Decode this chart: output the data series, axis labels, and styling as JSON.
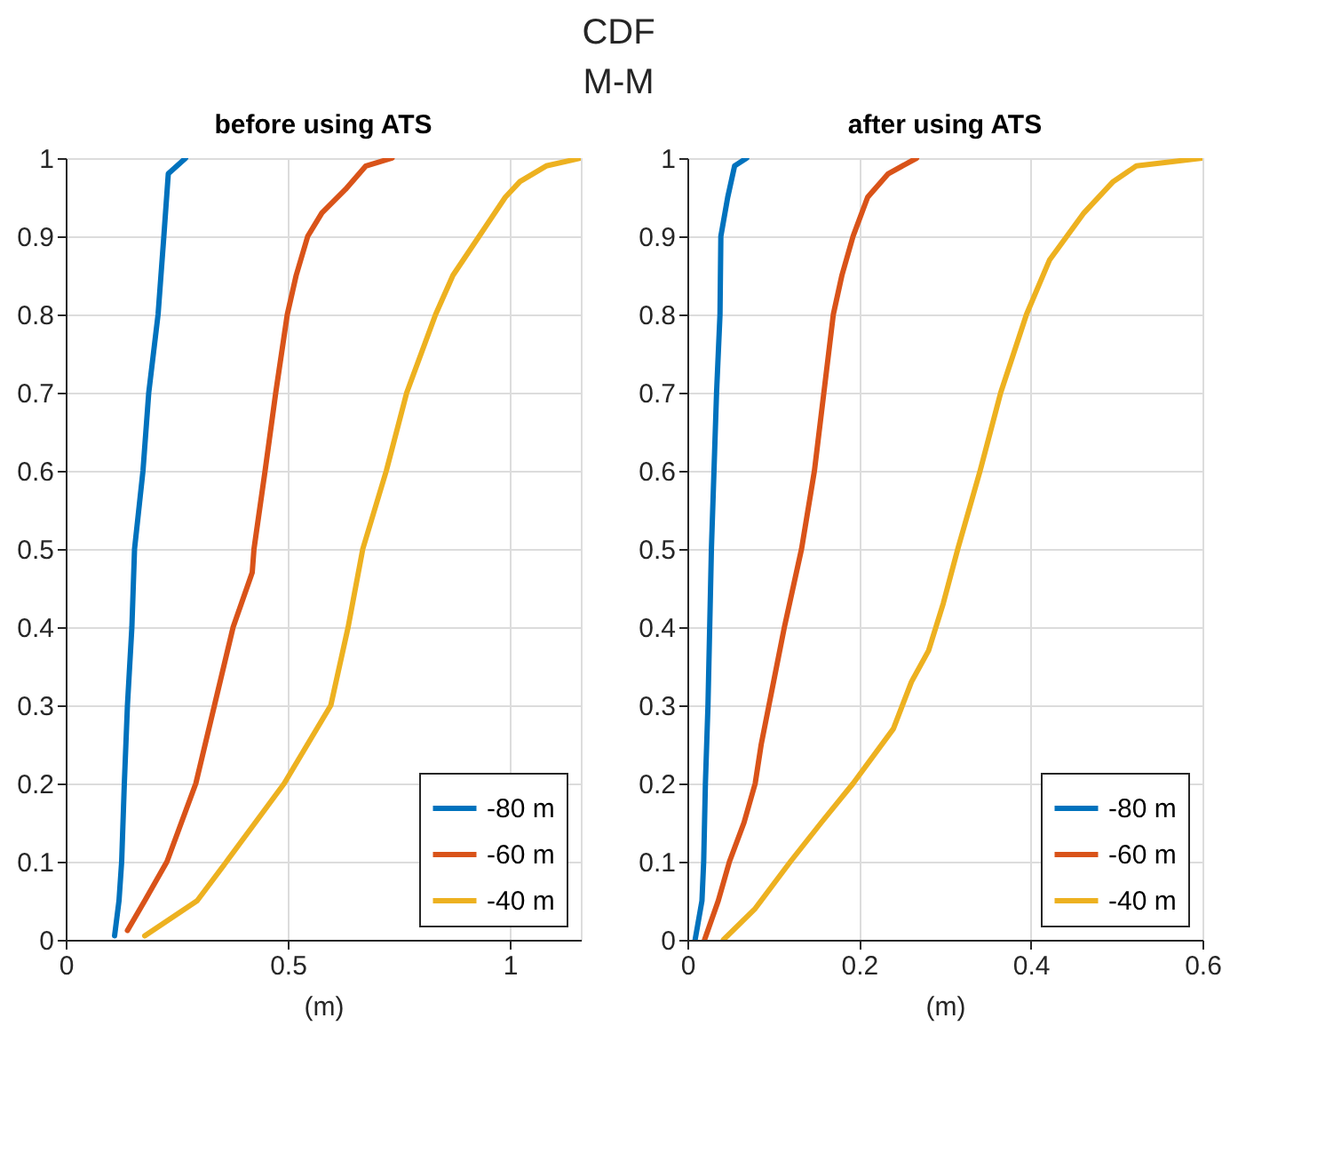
{
  "chart_data": [
    {
      "type": "line",
      "title": "before using ATS",
      "annotations": [
        "CDF",
        "M-M"
      ],
      "xlabel": "(m)",
      "xlim": [
        0,
        1.16
      ],
      "xticks": [
        0,
        0.5,
        1
      ],
      "ylim": [
        0,
        1
      ],
      "yticks": [
        0,
        0.1,
        0.2,
        0.3,
        0.4,
        0.5,
        0.6,
        0.7,
        0.8,
        0.9,
        1
      ],
      "grid": true,
      "legend": "bottom right",
      "line_style": "solid",
      "marker": "none",
      "series": [
        {
          "name": "-80 m",
          "color": "#0072bd",
          "x": [
            0.11,
            0.12,
            0.126,
            0.132,
            0.139,
            0.149,
            0.155,
            0.174,
            0.187,
            0.208,
            0.221,
            0.231,
            0.27
          ],
          "values": [
            0.005,
            0.05,
            0.1,
            0.2,
            0.3,
            0.4,
            0.5,
            0.6,
            0.7,
            0.8,
            0.9,
            0.98,
            1
          ]
        },
        {
          "name": "-60 m",
          "color": "#d95319",
          "x": [
            0.139,
            0.178,
            0.228,
            0.293,
            0.335,
            0.377,
            0.42,
            0.424,
            0.449,
            0.473,
            0.499,
            0.519,
            0.545,
            0.577,
            0.63,
            0.676,
            0.735
          ],
          "values": [
            0.012,
            0.05,
            0.1,
            0.2,
            0.3,
            0.4,
            0.47,
            0.5,
            0.6,
            0.7,
            0.8,
            0.85,
            0.9,
            0.93,
            0.96,
            0.99,
            1
          ]
        },
        {
          "name": "-40 m",
          "color": "#edb120",
          "x": [
            0.178,
            0.296,
            0.362,
            0.427,
            0.492,
            0.597,
            0.636,
            0.669,
            0.722,
            0.768,
            0.833,
            0.872,
            0.931,
            0.99,
            1.023,
            1.082,
            1.16
          ],
          "values": [
            0.005,
            0.05,
            0.1,
            0.15,
            0.2,
            0.3,
            0.4,
            0.5,
            0.6,
            0.7,
            0.8,
            0.85,
            0.9,
            0.95,
            0.97,
            0.99,
            1
          ]
        }
      ]
    },
    {
      "type": "line",
      "title": "after using ATS",
      "xlabel": "(m)",
      "xlim": [
        0,
        0.6
      ],
      "xticks": [
        0,
        0.2,
        0.4,
        0.6
      ],
      "ylim": [
        0,
        1
      ],
      "yticks": [
        0,
        0.1,
        0.2,
        0.3,
        0.4,
        0.5,
        0.6,
        0.7,
        0.8,
        0.9,
        1
      ],
      "grid": true,
      "legend": "bottom right",
      "line_style": "solid",
      "marker": "none",
      "series": [
        {
          "name": "-80 m",
          "color": "#0072bd",
          "x": [
            0.009,
            0.017,
            0.019,
            0.021,
            0.024,
            0.028,
            0.031,
            0.034,
            0.038,
            0.039,
            0.047,
            0.055,
            0.069
          ],
          "values": [
            0,
            0.05,
            0.1,
            0.2,
            0.3,
            0.5,
            0.6,
            0.7,
            0.8,
            0.9,
            0.95,
            0.99,
            1
          ]
        },
        {
          "name": "-60 m",
          "color": "#d95319",
          "x": [
            0.02,
            0.036,
            0.049,
            0.066,
            0.079,
            0.086,
            0.095,
            0.113,
            0.133,
            0.148,
            0.159,
            0.17,
            0.18,
            0.193,
            0.21,
            0.234,
            0.267
          ],
          "values": [
            0,
            0.05,
            0.1,
            0.15,
            0.2,
            0.25,
            0.3,
            0.4,
            0.5,
            0.6,
            0.7,
            0.8,
            0.85,
            0.9,
            0.95,
            0.98,
            1
          ]
        },
        {
          "name": "-40 m",
          "color": "#edb120",
          "x": [
            0.042,
            0.079,
            0.12,
            0.156,
            0.193,
            0.24,
            0.261,
            0.281,
            0.298,
            0.315,
            0.341,
            0.365,
            0.395,
            0.422,
            0.462,
            0.496,
            0.523,
            0.6
          ],
          "values": [
            0,
            0.04,
            0.1,
            0.15,
            0.2,
            0.27,
            0.33,
            0.37,
            0.43,
            0.5,
            0.6,
            0.7,
            0.8,
            0.87,
            0.93,
            0.97,
            0.99,
            1
          ]
        }
      ]
    }
  ]
}
